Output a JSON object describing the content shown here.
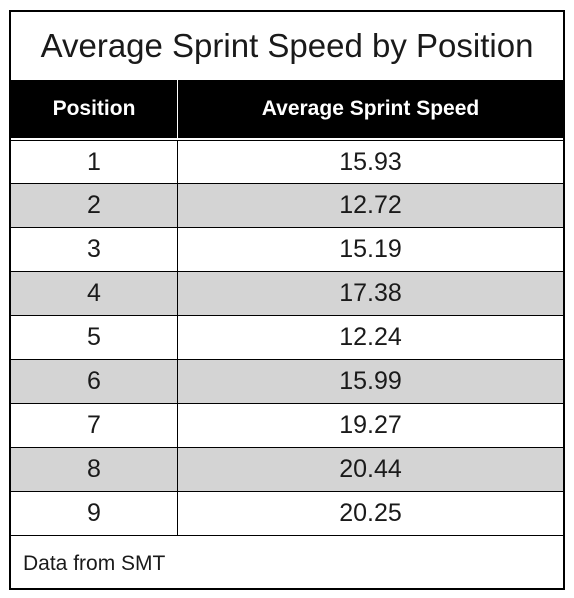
{
  "chart_data": {
    "type": "table",
    "title": "Average Sprint Speed by Position",
    "columns": [
      "Position",
      "Average Sprint Speed"
    ],
    "rows": [
      [
        "1",
        "15.93"
      ],
      [
        "2",
        "12.72"
      ],
      [
        "3",
        "15.19"
      ],
      [
        "4",
        "17.38"
      ],
      [
        "5",
        "12.24"
      ],
      [
        "6",
        "15.99"
      ],
      [
        "7",
        "19.27"
      ],
      [
        "8",
        "20.44"
      ],
      [
        "9",
        "20.25"
      ]
    ],
    "footnote": "Data from SMT",
    "colors": {
      "header_bg": "#000000",
      "header_text": "#ffffff",
      "shaded_row": "#d4d4d4"
    }
  }
}
